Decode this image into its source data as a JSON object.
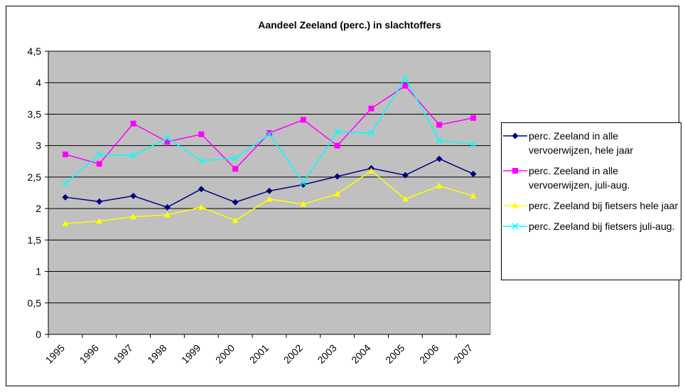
{
  "chart_data": {
    "type": "line",
    "title": "Aandeel Zeeland (perc.) in slachtoffers",
    "categories": [
      "1995",
      "1996",
      "1997",
      "1998",
      "1999",
      "2000",
      "2001",
      "2002",
      "2003",
      "2004",
      "2005",
      "2006",
      "2007"
    ],
    "series": [
      {
        "name": "perc. Zeeland in alle vervoerwijzen, hele jaar",
        "color": "#000080",
        "marker": "diamond",
        "values": [
          2.18,
          2.11,
          2.2,
          2.02,
          2.31,
          2.1,
          2.28,
          2.38,
          2.51,
          2.64,
          2.53,
          2.79,
          2.55
        ]
      },
      {
        "name": "perc. Zeeland in alle vervoerwijzen, juli-aug.",
        "color": "#ff00ff",
        "marker": "square",
        "values": [
          2.86,
          2.71,
          3.35,
          3.06,
          3.18,
          2.63,
          3.2,
          3.41,
          3.0,
          3.59,
          3.95,
          3.33,
          3.44
        ]
      },
      {
        "name": "perc. Zeeland bij fietsers hele jaar",
        "color": "#ffff00",
        "marker": "triangle",
        "values": [
          1.76,
          1.8,
          1.87,
          1.9,
          2.02,
          1.81,
          2.15,
          2.07,
          2.23,
          2.6,
          2.15,
          2.36,
          2.2
        ]
      },
      {
        "name": "perc. Zeeland bij fietsers juli-aug.",
        "color": "#00ffff",
        "marker": "x",
        "values": [
          2.4,
          2.86,
          2.84,
          3.12,
          2.76,
          2.8,
          3.18,
          2.41,
          3.22,
          3.2,
          4.07,
          3.08,
          3.02
        ]
      }
    ],
    "ylim": [
      0,
      4.5
    ],
    "yticks": [
      0,
      {
        "value": 0.5,
        "label": "0,5"
      },
      1,
      {
        "value": 1.5,
        "label": "1,5"
      },
      2,
      {
        "value": 2.5,
        "label": "2,5"
      },
      3,
      {
        "value": 3.5,
        "label": "3,5"
      },
      4,
      {
        "value": 4.5,
        "label": "4,5"
      }
    ],
    "grid": true,
    "plot_background": "#c0c0c0",
    "legend": "right"
  }
}
